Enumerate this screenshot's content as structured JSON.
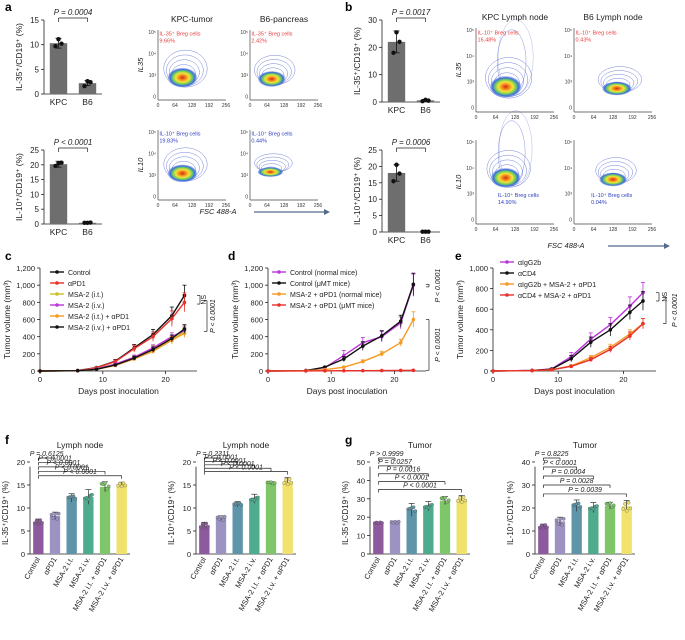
{
  "panel_letters": [
    "a",
    "b",
    "c",
    "d",
    "e",
    "f",
    "g"
  ],
  "colors": {
    "grey_bar": "#6e6e6e",
    "ctrl": "#8e5a9e",
    "apd1": "#9d93c3",
    "it": "#5f95a8",
    "iv": "#4eab8e",
    "it_apd1": "#7fc66a",
    "iv_apd1": "#f0e26c",
    "red": "#e8312b",
    "black": "#111111",
    "orange": "#f59a23",
    "purple": "#bb35d9",
    "yellow": "#c9c02a",
    "flow_red": "#ea3b3b",
    "flow_blue": "#2c3dbd"
  },
  "flow_common": {
    "y_ticks": [
      "10⁵",
      "10⁴",
      "10³",
      "0"
    ],
    "x_ticks": [
      "0",
      "64",
      "128",
      "192",
      "256"
    ],
    "x_axis_label": "FSC 488-A"
  },
  "chart_data": [
    {
      "panel": "a",
      "type": "bar",
      "ylabel": "IL-35⁺/CD19⁺ (%)",
      "categories": [
        "KPC",
        "B6"
      ],
      "values": [
        10.3,
        2.2
      ],
      "errors": [
        1.0,
        0.5
      ],
      "points": [
        [
          9.7,
          11.1,
          10.2
        ],
        [
          1.6,
          2.6,
          2.4
        ]
      ],
      "ylim": [
        0,
        15
      ],
      "yticks": [
        "0",
        "5",
        "10",
        "15"
      ],
      "pvalue": "P = 0.0004",
      "color": "#6e6e6e"
    },
    {
      "panel": "a",
      "type": "bar",
      "ylabel": "IL-10⁺/CD19⁺ (%)",
      "categories": [
        "KPC",
        "B6"
      ],
      "values": [
        20.2,
        0.4
      ],
      "errors": [
        1.0,
        0.1
      ],
      "points": [
        [
          19.6,
          20.6,
          20.7
        ],
        [
          0.4,
          0.4,
          0.5
        ]
      ],
      "ylim": [
        0,
        25
      ],
      "yticks": [
        "0",
        "5",
        "10",
        "15",
        "20",
        "25"
      ],
      "pvalue": "P < 0.0001",
      "color": "#6e6e6e"
    },
    {
      "panel": "a",
      "type": "scatter",
      "subtitle": "KPC-tumor",
      "ylabel": "IL35",
      "gate_label": "IL-35⁺ Breg cells",
      "gate_value": "9.66%",
      "label_color": "#ea3b3b"
    },
    {
      "panel": "a",
      "type": "scatter",
      "subtitle": "B6-pancreas",
      "ylabel": "",
      "gate_label": "IL-35⁺ Breg cells",
      "gate_value": "2.42%",
      "label_color": "#ea3b3b"
    },
    {
      "panel": "a",
      "type": "scatter",
      "subtitle": "",
      "ylabel": "IL10",
      "gate_label": "IL-10⁺ Breg cells",
      "gate_value": "19.83%",
      "label_color": "#2c3dbd"
    },
    {
      "panel": "a",
      "type": "scatter",
      "subtitle": "",
      "ylabel": "",
      "gate_label": "IL-10⁺ Breg cells",
      "gate_value": "0.44%",
      "label_color": "#2c3dbd"
    },
    {
      "panel": "b",
      "type": "bar",
      "ylabel": "IL-35⁺/CD19⁺ (%)",
      "categories": [
        "KPC",
        "B6"
      ],
      "values": [
        22.0,
        0.6
      ],
      "errors": [
        4.0,
        0.3
      ],
      "points": [
        [
          18.0,
          25.5,
          22.0
        ],
        [
          0.3,
          0.8,
          0.5
        ]
      ],
      "ylim": [
        0,
        30
      ],
      "yticks": [
        "0",
        "10",
        "20",
        "30"
      ],
      "pvalue": "P = 0.0017",
      "color": "#6e6e6e"
    },
    {
      "panel": "b",
      "type": "bar",
      "ylabel": "IL-10⁺/CD19⁺ (%)",
      "categories": [
        "KPC",
        "B6"
      ],
      "values": [
        18.0,
        0.1
      ],
      "errors": [
        2.5,
        0.05
      ],
      "points": [
        [
          15.5,
          20.5,
          17.8
        ],
        [
          0.1,
          0.1,
          0.1
        ]
      ],
      "ylim": [
        0,
        25
      ],
      "yticks": [
        "0",
        "5",
        "10",
        "15",
        "20",
        "25"
      ],
      "pvalue": "P = 0.0006",
      "color": "#6e6e6e"
    },
    {
      "panel": "b",
      "type": "scatter",
      "subtitle": "KPC Lymph node",
      "ylabel": "IL35",
      "gate_label": "IL-10⁺ Breg cells",
      "gate_value": "16.48%",
      "label_color": "#ea3b3b"
    },
    {
      "panel": "b",
      "type": "scatter",
      "subtitle": "B6 Lymph node",
      "ylabel": "",
      "gate_label": "IL-10⁺ Breg cells",
      "gate_value": "0.43%",
      "label_color": "#ea3b3b"
    },
    {
      "panel": "b",
      "type": "scatter",
      "subtitle": "",
      "ylabel": "IL10",
      "gate_label": "IL-10⁺ Breg cells",
      "gate_value": "14.90%",
      "label_color": "#2c3dbd"
    },
    {
      "panel": "b",
      "type": "scatter",
      "subtitle": "",
      "ylabel": "",
      "gate_label": "IL-10⁺ Breg cells",
      "gate_value": "0.04%",
      "label_color": "#2c3dbd"
    },
    {
      "panel": "c",
      "type": "line",
      "xlabel": "Days post inoculation",
      "ylabel": "Tumor volume (mm³)",
      "x": [
        0,
        6,
        9,
        12,
        15,
        18,
        21,
        23
      ],
      "xlim": [
        0,
        25
      ],
      "ylim": [
        0,
        1200
      ],
      "xticks": [
        0,
        10,
        20
      ],
      "yticks": [
        0,
        200,
        400,
        600,
        800,
        1000,
        1200
      ],
      "series": [
        {
          "name": "Control",
          "color": "#111111",
          "values": [
            0,
            5,
            40,
            115,
            270,
            425,
            645,
            880
          ],
          "errors": [
            0,
            2,
            8,
            20,
            40,
            60,
            100,
            120
          ]
        },
        {
          "name": "αPD1",
          "color": "#e8312b",
          "values": [
            0,
            5,
            38,
            110,
            260,
            400,
            610,
            800
          ],
          "errors": [
            0,
            2,
            8,
            20,
            40,
            55,
            90,
            110
          ]
        },
        {
          "name": "MSA-2 (i.t.)",
          "color": "#c9c02a",
          "values": [
            0,
            4,
            25,
            80,
            160,
            260,
            360,
            460
          ],
          "errors": [
            0,
            2,
            6,
            15,
            25,
            35,
            45,
            55
          ]
        },
        {
          "name": "MSA-2 (i.v.)",
          "color": "#bb35d9",
          "values": [
            0,
            4,
            24,
            80,
            160,
            270,
            400,
            470
          ],
          "errors": [
            0,
            2,
            6,
            15,
            25,
            35,
            45,
            55
          ]
        },
        {
          "name": "MSA-2 (i.t.) + αPD1",
          "color": "#f59a23",
          "values": [
            0,
            4,
            20,
            65,
            140,
            230,
            360,
            440
          ],
          "errors": [
            0,
            2,
            5,
            12,
            22,
            30,
            40,
            50
          ]
        },
        {
          "name": "MSA-2 (i.v.) + αPD1",
          "color": "#111111",
          "values": [
            0,
            4,
            20,
            70,
            150,
            250,
            380,
            490
          ],
          "errors": [
            0,
            2,
            5,
            12,
            22,
            30,
            40,
            50
          ]
        }
      ],
      "annotations": [
        "NS",
        "P < 0.0001"
      ]
    },
    {
      "panel": "d",
      "type": "line",
      "xlabel": "Days post inoculation",
      "ylabel": "Tumor volume (mm³)",
      "x": [
        0,
        6,
        9,
        12,
        15,
        18,
        21,
        23
      ],
      "xlim": [
        0,
        25
      ],
      "ylim": [
        0,
        1200
      ],
      "xticks": [
        0,
        10,
        20
      ],
      "yticks": [
        0,
        200,
        400,
        600,
        800,
        1000,
        1200
      ],
      "series": [
        {
          "name": "Control (normal mice)",
          "color": "#bb35d9",
          "values": [
            0,
            5,
            40,
            180,
            330,
            400,
            560,
            1000
          ],
          "errors": [
            0,
            2,
            10,
            60,
            60,
            60,
            70,
            130
          ]
        },
        {
          "name": "Control (μMT mice)",
          "color": "#111111",
          "values": [
            0,
            5,
            45,
            140,
            290,
            410,
            580,
            1010
          ],
          "errors": [
            0,
            2,
            10,
            30,
            50,
            60,
            70,
            130
          ]
        },
        {
          "name": "MSA-2 + αPD1 (normal mice)",
          "color": "#f59a23",
          "values": [
            0,
            3,
            15,
            45,
            110,
            200,
            330,
            600
          ],
          "errors": [
            0,
            1,
            4,
            10,
            20,
            30,
            40,
            90
          ]
        },
        {
          "name": "MSA-2 + αPD1 (μMT mice)",
          "color": "#e8312b",
          "values": [
            0,
            1,
            2,
            3,
            4,
            5,
            6,
            8
          ],
          "errors": [
            0,
            0,
            1,
            1,
            1,
            1,
            2,
            2
          ]
        }
      ],
      "annotations": [
        "P < 0.0001",
        "P < 0.0001"
      ]
    },
    {
      "panel": "e",
      "type": "line",
      "xlabel": "Days post inoculation",
      "ylabel": "Tumor volume (mm³)",
      "x": [
        0,
        6,
        9,
        12,
        15,
        18,
        21,
        23
      ],
      "xlim": [
        0,
        25
      ],
      "ylim": [
        0,
        1000
      ],
      "xticks": [
        0,
        10,
        20
      ],
      "yticks": [
        0,
        200,
        400,
        600,
        800,
        1000
      ],
      "series": [
        {
          "name": "αIgG2b",
          "color": "#bb35d9",
          "values": [
            0,
            5,
            20,
            140,
            310,
            450,
            630,
            760
          ],
          "errors": [
            0,
            2,
            8,
            40,
            60,
            70,
            90,
            100
          ]
        },
        {
          "name": "αCD4",
          "color": "#111111",
          "values": [
            0,
            5,
            18,
            120,
            280,
            400,
            570,
            680
          ],
          "errors": [
            0,
            2,
            8,
            30,
            50,
            60,
            70,
            90
          ]
        },
        {
          "name": "αIgG2b + MSA-2 + αPD1",
          "color": "#f59a23",
          "values": [
            0,
            4,
            12,
            50,
            130,
            230,
            360,
            460
          ],
          "errors": [
            0,
            2,
            4,
            10,
            20,
            30,
            40,
            50
          ]
        },
        {
          "name": "αCD4 + MSA-2 + αPD1",
          "color": "#e8312b",
          "values": [
            0,
            4,
            12,
            45,
            110,
            210,
            340,
            460
          ],
          "errors": [
            0,
            2,
            4,
            10,
            20,
            30,
            40,
            50
          ]
        }
      ],
      "annotations": [
        "NS",
        "P < 0.0001"
      ]
    },
    {
      "panel": "f",
      "type": "bar",
      "subtitle": "Lymph node",
      "ylabel": "IL-35⁺/CD19⁺ (%)",
      "categories": [
        "Control",
        "αPD1",
        "MSA-2 i.t.",
        "MSA-2 i.v.",
        "MSA-2 i.t. + αPD1",
        "MSA-2 i.v. + αPD1"
      ],
      "values": [
        7.0,
        8.3,
        12.2,
        12.4,
        14.6,
        15.1
      ],
      "errors": [
        0.6,
        0.8,
        0.9,
        1.6,
        1.1,
        0.5
      ],
      "ylim": [
        0,
        20
      ],
      "yticks": [
        "0",
        "5",
        "10",
        "15",
        "20"
      ],
      "pvalues": [
        "P = 0.6125",
        "P < 0.0001",
        "P < 0.0001",
        "P < 0.0001",
        "P < 0.0001"
      ]
    },
    {
      "panel": "f",
      "type": "bar",
      "subtitle": "Lymph node",
      "ylabel": "IL-10⁺/CD19⁺ (%)",
      "categories": [
        "Control",
        "αPD1",
        "MSA-2 i.t.",
        "MSA-2 i.v.",
        "MSA-2 i.t. + αPD1",
        "MSA-2 i.v. + αPD1"
      ],
      "values": [
        6.2,
        7.8,
        10.8,
        12.0,
        15.4,
        15.8
      ],
      "errors": [
        0.7,
        0.5,
        0.6,
        1.0,
        0.3,
        0.8
      ],
      "ylim": [
        0,
        20
      ],
      "yticks": [
        "0",
        "5",
        "10",
        "15",
        "20"
      ],
      "pvalues": [
        "P = 0.2311",
        "P < 0.0001",
        "P < 0.0001",
        "P < 0.0001",
        "P < 0.0001"
      ]
    },
    {
      "panel": "g",
      "type": "bar",
      "subtitle": "Tumor",
      "ylabel": "IL-35⁺/CD19⁺ (%)",
      "categories": [
        "Control",
        "αPD1",
        "MSA-2 i.t.",
        "MSA-2 i.v.",
        "MSA-2 i.t. + αPD1",
        "MSA-2 i.v. + αPD1"
      ],
      "values": [
        17.0,
        17.3,
        24.0,
        26.0,
        29.0,
        29.8
      ],
      "errors": [
        0.3,
        0.5,
        3.5,
        2.5,
        2.2,
        2.0
      ],
      "ylim": [
        0,
        50
      ],
      "yticks": [
        "0",
        "10",
        "20",
        "30",
        "40",
        "50"
      ],
      "pvalues": [
        "P > 0.9999",
        "P = 0.0257",
        "P = 0.0016",
        "P < 0.0001",
        "P < 0.0001"
      ]
    },
    {
      "panel": "g",
      "type": "bar",
      "subtitle": "Tumor",
      "ylabel": "IL-10⁺/CD19⁺ (%)",
      "categories": [
        "Control",
        "αPD1",
        "MSA-2 i.t.",
        "MSA-2 i.v.",
        "MSA-2 i.t. + αPD1",
        "MSA-2 i.v. + αPD1"
      ],
      "values": [
        12.0,
        14.2,
        21.0,
        20.2,
        21.0,
        20.8
      ],
      "errors": [
        1.0,
        1.8,
        2.5,
        2.2,
        1.5,
        2.5
      ],
      "ylim": [
        0,
        40
      ],
      "yticks": [
        "0",
        "10",
        "20",
        "30",
        "40"
      ],
      "pvalues": [
        "P = 0.8225",
        "P < 0.0001",
        "P = 0.0004",
        "P = 0.0028",
        "P = 0.0039"
      ]
    }
  ]
}
